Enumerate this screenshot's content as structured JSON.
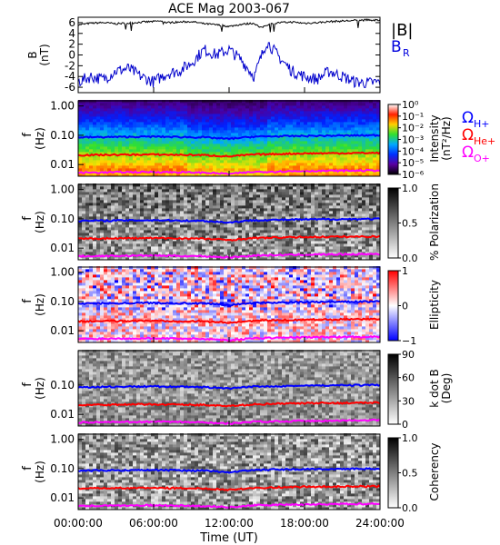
{
  "chart_data": {
    "title": "ACE Mag 2003-067",
    "xlabel": "Time (UT)",
    "x_ticks": [
      "00:00:00",
      "06:00:00",
      "12:00:00",
      "18:00:00",
      "24:00:00"
    ],
    "x_range_hours": [
      0,
      24
    ],
    "panels": [
      {
        "id": "b-field",
        "type": "line",
        "ylabel": [
          "B",
          "(nT)"
        ],
        "y_ticks": [
          "6",
          "4",
          "2",
          "0",
          "-2",
          "-4",
          "-6"
        ],
        "ylim": [
          -7,
          7
        ],
        "legend": [
          "|B|",
          "B",
          "R"
        ],
        "series": [
          {
            "name": "|B|",
            "color": "#000000",
            "x": [
              0,
              1,
              2,
              3,
              4,
              5,
              6,
              6.5,
              7,
              8,
              9,
              10,
              11,
              12,
              13,
              14,
              14.5,
              15,
              16,
              17,
              18,
              19,
              20,
              21,
              22,
              23,
              24
            ],
            "y": [
              5.6,
              5.9,
              6.0,
              5.8,
              5.9,
              6.1,
              6.2,
              6.3,
              6.0,
              6.1,
              6.2,
              5.8,
              5.6,
              5.3,
              5.7,
              5.9,
              5.0,
              5.6,
              6.0,
              6.1,
              5.9,
              6.0,
              6.2,
              6.3,
              6.4,
              6.5,
              6.4
            ]
          },
          {
            "name": "B_R",
            "color": "#0000cc",
            "x": [
              0,
              1,
              2,
              3,
              4,
              5,
              6,
              7,
              8,
              9,
              10,
              11,
              12,
              13,
              14,
              15,
              16,
              17,
              18,
              19,
              20,
              21,
              22,
              23,
              24
            ],
            "y": [
              -5.0,
              -4.0,
              -4.5,
              -3.0,
              -2.5,
              -4.0,
              -5.0,
              -3.5,
              -3.0,
              -1.5,
              1.0,
              0.0,
              1.0,
              -1.0,
              -4.0,
              2.5,
              -0.5,
              -3.0,
              -4.0,
              -4.5,
              -3.0,
              -4.0,
              -5.0,
              -5.2,
              -5.0
            ]
          }
        ]
      },
      {
        "id": "intensity",
        "type": "heatmap",
        "ylabel": [
          "f",
          "(Hz)"
        ],
        "y_ticks": [
          "1.00",
          "0.10",
          "0.01"
        ],
        "colorbar": {
          "label": [
            "Intensity",
            "(nT²/Hz)"
          ],
          "ticks": [
            "10⁰",
            "10⁻¹",
            "10⁻²",
            "10⁻³",
            "10⁻⁴",
            "10⁻⁵",
            "10⁻⁶"
          ],
          "colors": [
            "#ffffff",
            "#ff2000",
            "#ffd000",
            "#30e030",
            "#00a8ff",
            "#0030ff",
            "#5a00a0",
            "#000000"
          ]
        },
        "legend": [
          {
            "text": "Ω",
            "sub": "H+",
            "color": "#0000ff"
          },
          {
            "text": "Ω",
            "sub": "He+",
            "color": "#ff0000"
          },
          {
            "text": "Ω",
            "sub": "O+",
            "color": "#ff00ff"
          }
        ]
      },
      {
        "id": "polarization",
        "type": "heatmap",
        "ylabel": [
          "f",
          "(Hz)"
        ],
        "y_ticks": [
          "1.00",
          "0.10",
          "0.01"
        ],
        "colorbar": {
          "label": [
            "% Polarization"
          ],
          "ticks": [
            "1.0",
            "0.5",
            "0.0"
          ],
          "colors": [
            "#000000",
            "#ffffff"
          ]
        }
      },
      {
        "id": "ellipticity",
        "type": "heatmap",
        "ylabel": [
          "f",
          "(Hz)"
        ],
        "y_ticks": [
          "1.00",
          "0.10",
          "0.01"
        ],
        "colorbar": {
          "label": [
            "Ellipticity"
          ],
          "ticks": [
            "1",
            "0",
            "−1"
          ],
          "colors": [
            "#ff0000",
            "#ffffff",
            "#0000ff"
          ]
        }
      },
      {
        "id": "k-dot-b",
        "type": "heatmap",
        "ylabel": [
          "f",
          "(Hz)"
        ],
        "y_ticks": [
          "0.10",
          "0.01"
        ],
        "colorbar": {
          "label": [
            "k dot B",
            "(Deg)"
          ],
          "ticks": [
            "90",
            "60",
            "30",
            "0"
          ],
          "colors": [
            "#000000",
            "#ffffff"
          ]
        }
      },
      {
        "id": "coherency",
        "type": "heatmap",
        "ylabel": [
          "f",
          "(Hz)"
        ],
        "y_ticks": [
          "1.00",
          "0.10",
          "0.01"
        ],
        "colorbar": {
          "label": [
            "Coherency"
          ],
          "ticks": [
            "1.0",
            "0.5",
            "0.0"
          ],
          "colors": [
            "#000000",
            "#ffffff"
          ]
        }
      }
    ],
    "gyro_lines_hz": {
      "H+": {
        "color": "#0000ff",
        "x": [
          0,
          6,
          10,
          12,
          14,
          18,
          24
        ],
        "f": [
          0.085,
          0.09,
          0.085,
          0.075,
          0.09,
          0.095,
          0.1
        ]
      },
      "He+": {
        "color": "#ff0000",
        "x": [
          0,
          6,
          10,
          12,
          14,
          18,
          24
        ],
        "f": [
          0.021,
          0.022,
          0.021,
          0.019,
          0.022,
          0.024,
          0.025
        ]
      },
      "O+": {
        "color": "#ff00ff",
        "x": [
          0,
          6,
          10,
          12,
          14,
          18,
          24
        ],
        "f": [
          0.0053,
          0.0056,
          0.0053,
          0.0048,
          0.0056,
          0.006,
          0.0063
        ]
      }
    }
  }
}
